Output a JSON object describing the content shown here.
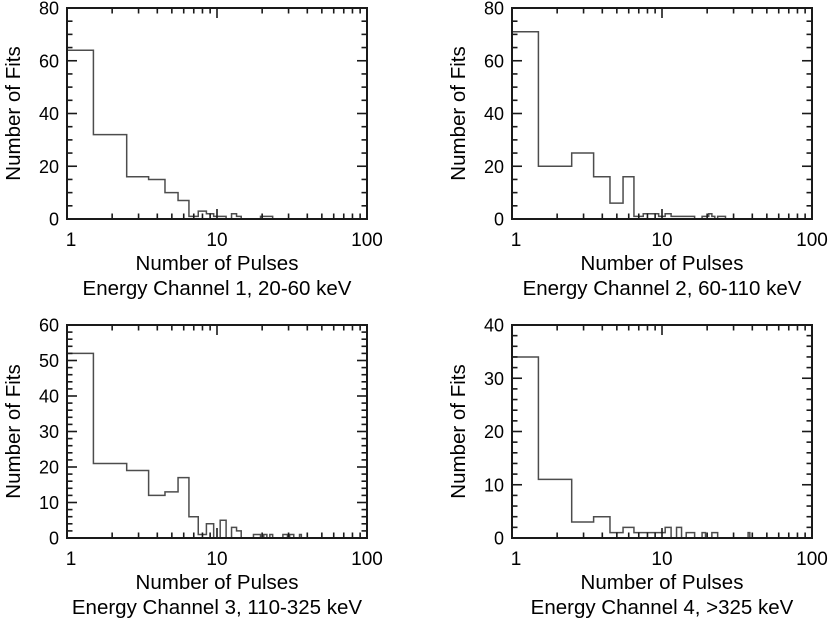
{
  "figure": {
    "background": "#ffffff",
    "description": "Four histograms of number of fits versus number of pulses for four energy channels"
  },
  "styles": {
    "axis_color": "#1a1a1a",
    "hist_color": "#4d4d4d",
    "text_color": "#000000"
  },
  "chart_data": [
    {
      "id": "channel-1",
      "type": "bar",
      "subtype": "histogram-step",
      "title": "Energy Channel 1, 20-60 keV",
      "xlabel": "Number of Pulses",
      "ylabel": "Number of Fits",
      "xscale": "log",
      "xlim": [
        1,
        100
      ],
      "ylim": [
        0,
        80
      ],
      "xticks": [
        1,
        10,
        100
      ],
      "xtick_labels": [
        "1",
        "10",
        "100"
      ],
      "x_minor_ticks": [
        2,
        3,
        4,
        5,
        6,
        7,
        8,
        9,
        20,
        30,
        40,
        50,
        60,
        70,
        80,
        90
      ],
      "yticks": [
        0,
        20,
        40,
        60,
        80
      ],
      "ytick_labels": [
        "0",
        "20",
        "40",
        "60",
        "80"
      ],
      "y_minor_step": 5,
      "grid": false,
      "legend": null,
      "bin_start": 1,
      "bin_values": [
        64,
        32,
        16,
        15,
        10,
        7,
        1,
        3,
        2,
        1,
        1,
        0,
        2,
        1,
        0,
        0,
        0,
        0,
        0,
        1,
        1,
        1,
        1
      ]
    },
    {
      "id": "channel-2",
      "type": "bar",
      "subtype": "histogram-step",
      "title": "Energy Channel 2, 60-110 keV",
      "xlabel": "Number of Pulses",
      "ylabel": "Number of Fits",
      "xscale": "log",
      "xlim": [
        1,
        100
      ],
      "ylim": [
        0,
        80
      ],
      "xticks": [
        1,
        10,
        100
      ],
      "xtick_labels": [
        "1",
        "10",
        "100"
      ],
      "x_minor_ticks": [
        2,
        3,
        4,
        5,
        6,
        7,
        8,
        9,
        20,
        30,
        40,
        50,
        60,
        70,
        80,
        90
      ],
      "yticks": [
        0,
        20,
        40,
        60,
        80
      ],
      "ytick_labels": [
        "0",
        "20",
        "40",
        "60",
        "80"
      ],
      "y_minor_step": 5,
      "grid": false,
      "legend": null,
      "bin_start": 1,
      "bin_values": [
        71,
        20,
        25,
        16,
        6,
        16,
        1,
        2,
        2,
        1,
        2,
        1,
        1,
        1,
        1,
        1,
        0,
        0,
        1,
        1,
        2,
        1,
        0,
        1,
        1,
        1
      ]
    },
    {
      "id": "channel-3",
      "type": "bar",
      "subtype": "histogram-step",
      "title": "Energy Channel 3, 110-325 keV",
      "xlabel": "Number of Pulses",
      "ylabel": "Number of Fits",
      "xscale": "log",
      "xlim": [
        1,
        100
      ],
      "ylim": [
        0,
        60
      ],
      "xticks": [
        1,
        10,
        100
      ],
      "xtick_labels": [
        "1",
        "10",
        "100"
      ],
      "x_minor_ticks": [
        2,
        3,
        4,
        5,
        6,
        7,
        8,
        9,
        20,
        30,
        40,
        50,
        60,
        70,
        80,
        90
      ],
      "yticks": [
        0,
        10,
        20,
        30,
        40,
        50,
        60
      ],
      "ytick_labels": [
        "0",
        "10",
        "20",
        "30",
        "40",
        "50",
        "60"
      ],
      "y_minor_step": 2,
      "grid": false,
      "legend": null,
      "bin_start": 1,
      "bin_values": [
        52,
        21,
        19,
        12,
        13,
        17,
        6,
        1,
        4,
        0,
        5,
        0,
        3,
        2,
        0,
        0,
        0,
        1,
        1,
        0,
        1,
        0,
        1,
        0,
        0,
        0,
        0,
        1,
        1,
        0,
        1,
        1,
        0,
        0,
        0,
        1
      ]
    },
    {
      "id": "channel-4",
      "type": "bar",
      "subtype": "histogram-step",
      "title": "Energy Channel 4, >325 keV",
      "xlabel": "Number of Pulses",
      "ylabel": "Number of Fits",
      "xscale": "log",
      "xlim": [
        1,
        100
      ],
      "ylim": [
        0,
        40
      ],
      "xticks": [
        1,
        10,
        100
      ],
      "xtick_labels": [
        "1",
        "10",
        "100"
      ],
      "x_minor_ticks": [
        2,
        3,
        4,
        5,
        6,
        7,
        8,
        9,
        20,
        30,
        40,
        50,
        60,
        70,
        80,
        90
      ],
      "yticks": [
        0,
        10,
        20,
        30,
        40
      ],
      "ytick_labels": [
        "0",
        "10",
        "20",
        "30",
        "40"
      ],
      "y_minor_step": 2,
      "grid": false,
      "legend": null,
      "bin_start": 1,
      "bin_values": [
        34,
        11,
        3,
        4,
        1,
        2,
        1,
        1,
        1,
        1,
        2,
        0,
        2,
        0,
        1,
        1,
        0,
        0,
        1,
        0,
        0,
        1,
        1,
        0,
        0,
        0,
        0,
        0,
        0,
        0,
        0,
        0,
        0,
        0,
        0,
        0,
        0,
        1
      ]
    }
  ]
}
